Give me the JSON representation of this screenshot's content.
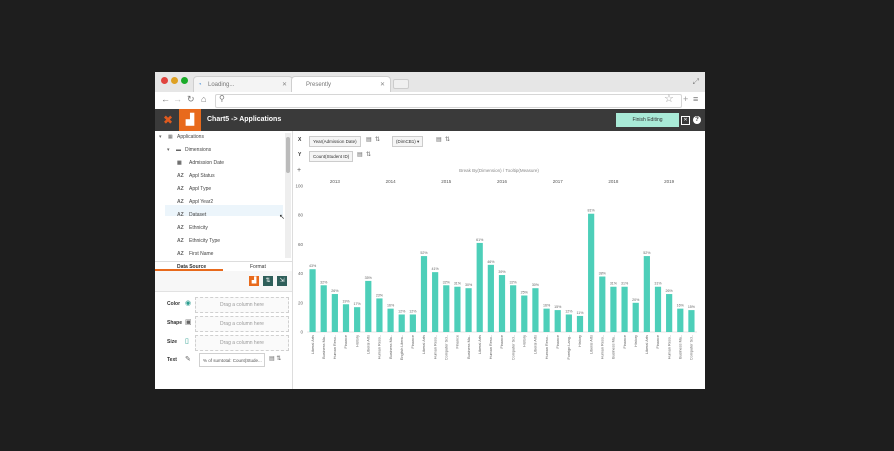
{
  "browser": {
    "tabs": [
      {
        "label": "Loading..."
      },
      {
        "label": "Presently"
      }
    ]
  },
  "app": {
    "title": "Chart5 -> Applications",
    "finish_label": "Finish Editing"
  },
  "tree": {
    "root": "Applications",
    "dimensions_label": "Dimensions",
    "items": [
      {
        "type": "cal",
        "label": "Admission Date"
      },
      {
        "type": "AZ",
        "label": "Appl Status"
      },
      {
        "type": "AZ",
        "label": "Appl Type"
      },
      {
        "type": "AZ",
        "label": "Appl Year2"
      },
      {
        "type": "AZ",
        "label": "Dataset"
      },
      {
        "type": "AZ",
        "label": "Ethnicity"
      },
      {
        "type": "AZ",
        "label": "Ethnicity Type"
      },
      {
        "type": "AZ",
        "label": "First Name"
      }
    ]
  },
  "panel_tabs": {
    "data_source": "Data Source",
    "format": "Format"
  },
  "shelves": {
    "color": {
      "label": "Color",
      "placeholder": "Drag a column here"
    },
    "shape": {
      "label": "Shape",
      "placeholder": "Drag a column here"
    },
    "size": {
      "label": "Size",
      "placeholder": "Drag a column here"
    },
    "text": {
      "label": "Text",
      "value": "% of sumtotal: Count(Stude..."
    }
  },
  "axes": {
    "x_label": "X",
    "x_field": "Year(Admission Date)",
    "x_field2": "(DimCB1)",
    "y_label": "Y",
    "y_field": "Count(Student ID)"
  },
  "break_by": "Break By(Dimension) / Tooltip(Measure)",
  "colors": {
    "bar": "#4dcfb9",
    "accent": "#e86a1c",
    "header": "#3a3a3a"
  },
  "chart_data": {
    "type": "bar",
    "ylim": [
      0,
      100
    ],
    "yticks": [
      0,
      20,
      40,
      60,
      80,
      100
    ],
    "groups": [
      {
        "year": "2013",
        "bars": [
          {
            "label": "Liberal Arts",
            "value": 43,
            "text": "43%"
          },
          {
            "label": "Business Ma..",
            "value": 32,
            "text": "32%"
          },
          {
            "label": "Human Reso..",
            "value": 26,
            "text": "26%"
          },
          {
            "label": "Finance",
            "value": 19,
            "text": "19%"
          },
          {
            "label": "History",
            "value": 17,
            "text": "17%"
          }
        ]
      },
      {
        "year": "2014",
        "bars": [
          {
            "label": "Liberal Arts",
            "value": 35,
            "text": "35%"
          },
          {
            "label": "Human Reso..",
            "value": 23,
            "text": "23%"
          },
          {
            "label": "Business Ma..",
            "value": 16,
            "text": "16%"
          },
          {
            "label": "English Litera..",
            "value": 12,
            "text": "12%"
          },
          {
            "label": "Finance",
            "value": 12,
            "text": "12%"
          }
        ]
      },
      {
        "year": "2015",
        "bars": [
          {
            "label": "Liberal Arts",
            "value": 52,
            "text": "52%"
          },
          {
            "label": "Human Reso..",
            "value": 41,
            "text": "41%"
          },
          {
            "label": "Computer Sci..",
            "value": 32,
            "text": "32%"
          },
          {
            "label": "Finance",
            "value": 31,
            "text": "31%"
          },
          {
            "label": "Business Ma..",
            "value": 30,
            "text": "30%"
          }
        ]
      },
      {
        "year": "2016",
        "bars": [
          {
            "label": "Liberal Arts",
            "value": 61,
            "text": "61%"
          },
          {
            "label": "Human Reso..",
            "value": 46,
            "text": "46%"
          },
          {
            "label": "Finance",
            "value": 39,
            "text": "39%"
          },
          {
            "label": "Computer Sci..",
            "value": 32,
            "text": "32%"
          },
          {
            "label": "History",
            "value": 25,
            "text": "25%"
          }
        ]
      },
      {
        "year": "2017",
        "bars": [
          {
            "label": "Liberal Arts",
            "value": 30,
            "text": "30%"
          },
          {
            "label": "Human Reso..",
            "value": 16,
            "text": "16%"
          },
          {
            "label": "Finance",
            "value": 15,
            "text": "15%"
          },
          {
            "label": "Foreign Lang..",
            "value": 12,
            "text": "12%"
          },
          {
            "label": "History",
            "value": 11,
            "text": "11%"
          }
        ]
      },
      {
        "year": "2018",
        "bars": [
          {
            "label": "Liberal Arts",
            "value": 81,
            "text": "81%"
          },
          {
            "label": "Human Reso..",
            "value": 38,
            "text": "38%"
          },
          {
            "label": "Business Ma..",
            "value": 31,
            "text": "31%"
          },
          {
            "label": "Finance",
            "value": 31,
            "text": "31%"
          },
          {
            "label": "History",
            "value": 20,
            "text": "20%"
          }
        ]
      },
      {
        "year": "2019",
        "bars": [
          {
            "label": "Liberal Arts",
            "value": 52,
            "text": "52%"
          },
          {
            "label": "Finance",
            "value": 31,
            "text": "31%"
          },
          {
            "label": "Human Reso..",
            "value": 26,
            "text": "26%"
          },
          {
            "label": "Business Ma..",
            "value": 16,
            "text": "16%"
          },
          {
            "label": "Computer Sci..",
            "value": 15,
            "text": "15%"
          }
        ]
      }
    ]
  }
}
